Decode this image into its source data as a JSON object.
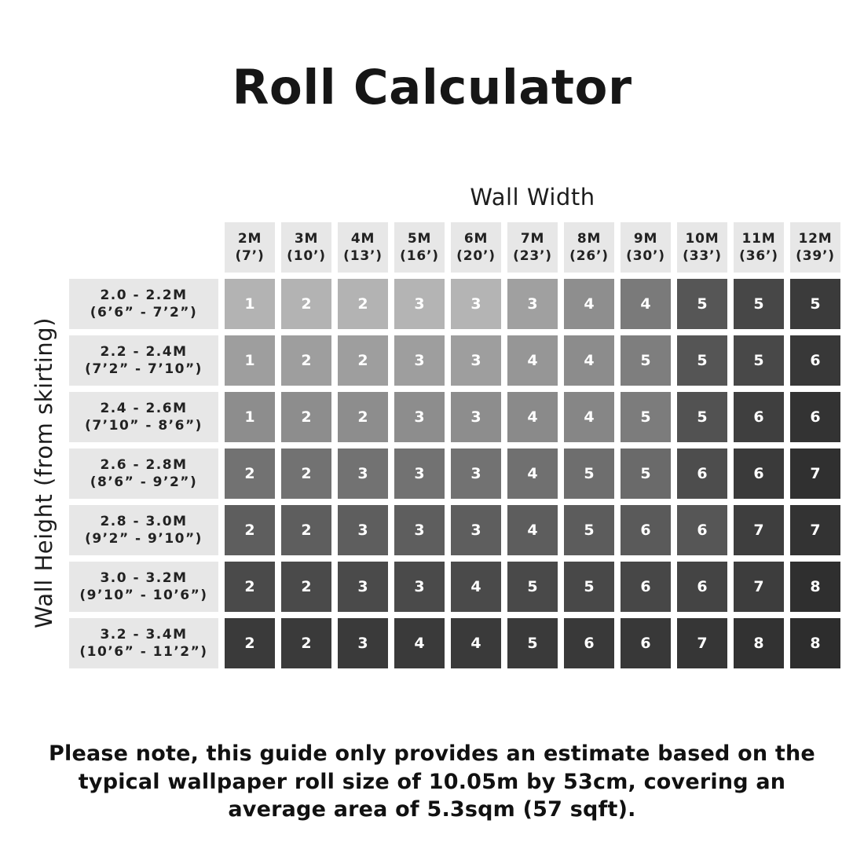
{
  "page": {
    "title": "Roll Calculator",
    "column_axis_label": "Wall Width",
    "row_axis_label": "Wall Height (from skirting)",
    "note": "Please note, this guide only provides an estimate based on the typical wallpaper roll size of 10.05m by 53cm, covering an average area of 5.3sqm (57 sqft)."
  },
  "colors": {
    "background": "#ffffff",
    "header_bg": "#e7e7e7",
    "header_text": "#222222",
    "cell_text": "#ffffff",
    "title_text": "#161616"
  },
  "table": {
    "columns": [
      {
        "meters": "2M",
        "feet": "(7’)"
      },
      {
        "meters": "3M",
        "feet": "(10’)"
      },
      {
        "meters": "4M",
        "feet": "(13’)"
      },
      {
        "meters": "5M",
        "feet": "(16’)"
      },
      {
        "meters": "6M",
        "feet": "(20’)"
      },
      {
        "meters": "7M",
        "feet": "(23’)"
      },
      {
        "meters": "8M",
        "feet": "(26’)"
      },
      {
        "meters": "9M",
        "feet": "(30’)"
      },
      {
        "meters": "10M",
        "feet": "(33’)"
      },
      {
        "meters": "11M",
        "feet": "(36’)"
      },
      {
        "meters": "12M",
        "feet": "(39’)"
      }
    ],
    "rows": [
      {
        "meters": "2.0 - 2.2M",
        "feet": "(6’6” - 7’2”)",
        "cells": [
          {
            "value": "1",
            "color": "#b3b3b3"
          },
          {
            "value": "2",
            "color": "#b3b3b3"
          },
          {
            "value": "2",
            "color": "#b3b3b3"
          },
          {
            "value": "3",
            "color": "#b4b4b4"
          },
          {
            "value": "3",
            "color": "#b4b4b4"
          },
          {
            "value": "3",
            "color": "#a0a0a0"
          },
          {
            "value": "4",
            "color": "#8e8e8e"
          },
          {
            "value": "4",
            "color": "#7a7a7a"
          },
          {
            "value": "5",
            "color": "#565656"
          },
          {
            "value": "5",
            "color": "#474747"
          },
          {
            "value": "5",
            "color": "#3b3b3b"
          }
        ]
      },
      {
        "meters": "2.2 - 2.4M",
        "feet": "(7’2” - 7’10”)",
        "cells": [
          {
            "value": "1",
            "color": "#9e9e9e"
          },
          {
            "value": "2",
            "color": "#9e9e9e"
          },
          {
            "value": "2",
            "color": "#9e9e9e"
          },
          {
            "value": "3",
            "color": "#9e9e9e"
          },
          {
            "value": "3",
            "color": "#9e9e9e"
          },
          {
            "value": "4",
            "color": "#969696"
          },
          {
            "value": "4",
            "color": "#8c8c8c"
          },
          {
            "value": "5",
            "color": "#7e7e7e"
          },
          {
            "value": "5",
            "color": "#555555"
          },
          {
            "value": "5",
            "color": "#484848"
          },
          {
            "value": "6",
            "color": "#383838"
          }
        ]
      },
      {
        "meters": "2.4 - 2.6M",
        "feet": "(7’10” - 8’6”)",
        "cells": [
          {
            "value": "1",
            "color": "#8d8d8d"
          },
          {
            "value": "2",
            "color": "#8d8d8d"
          },
          {
            "value": "2",
            "color": "#8d8d8d"
          },
          {
            "value": "3",
            "color": "#8d8d8d"
          },
          {
            "value": "3",
            "color": "#8d8d8d"
          },
          {
            "value": "4",
            "color": "#8a8a8a"
          },
          {
            "value": "4",
            "color": "#868686"
          },
          {
            "value": "5",
            "color": "#7c7c7c"
          },
          {
            "value": "5",
            "color": "#525252"
          },
          {
            "value": "6",
            "color": "#3f3f3f"
          },
          {
            "value": "6",
            "color": "#333333"
          }
        ]
      },
      {
        "meters": "2.6 - 2.8M",
        "feet": "(8’6” - 9’2”)",
        "cells": [
          {
            "value": "2",
            "color": "#727272"
          },
          {
            "value": "2",
            "color": "#727272"
          },
          {
            "value": "3",
            "color": "#727272"
          },
          {
            "value": "3",
            "color": "#727272"
          },
          {
            "value": "3",
            "color": "#727272"
          },
          {
            "value": "4",
            "color": "#707070"
          },
          {
            "value": "5",
            "color": "#6e6e6e"
          },
          {
            "value": "5",
            "color": "#6a6a6a"
          },
          {
            "value": "6",
            "color": "#4d4d4d"
          },
          {
            "value": "6",
            "color": "#3a3a3a"
          },
          {
            "value": "7",
            "color": "#303030"
          }
        ]
      },
      {
        "meters": "2.8 - 3.0M",
        "feet": "(9’2” - 9’10”)",
        "cells": [
          {
            "value": "2",
            "color": "#5e5e5e"
          },
          {
            "value": "2",
            "color": "#5e5e5e"
          },
          {
            "value": "3",
            "color": "#5e5e5e"
          },
          {
            "value": "3",
            "color": "#5e5e5e"
          },
          {
            "value": "3",
            "color": "#5e5e5e"
          },
          {
            "value": "4",
            "color": "#5d5d5d"
          },
          {
            "value": "5",
            "color": "#5c5c5c"
          },
          {
            "value": "6",
            "color": "#5a5a5a"
          },
          {
            "value": "6",
            "color": "#565656"
          },
          {
            "value": "7",
            "color": "#3e3e3e"
          },
          {
            "value": "7",
            "color": "#333333"
          }
        ]
      },
      {
        "meters": "3.0 - 3.2M",
        "feet": "(9’10” - 10’6”)",
        "cells": [
          {
            "value": "2",
            "color": "#4a4a4a"
          },
          {
            "value": "2",
            "color": "#4a4a4a"
          },
          {
            "value": "3",
            "color": "#4a4a4a"
          },
          {
            "value": "3",
            "color": "#4a4a4a"
          },
          {
            "value": "4",
            "color": "#4a4a4a"
          },
          {
            "value": "5",
            "color": "#494949"
          },
          {
            "value": "5",
            "color": "#484848"
          },
          {
            "value": "6",
            "color": "#474747"
          },
          {
            "value": "6",
            "color": "#444444"
          },
          {
            "value": "7",
            "color": "#3d3d3d"
          },
          {
            "value": "8",
            "color": "#2f2f2f"
          }
        ]
      },
      {
        "meters": "3.2 - 3.4M",
        "feet": "(10’6” - 11’2”)",
        "cells": [
          {
            "value": "2",
            "color": "#3a3a3a"
          },
          {
            "value": "2",
            "color": "#3a3a3a"
          },
          {
            "value": "3",
            "color": "#3a3a3a"
          },
          {
            "value": "4",
            "color": "#3a3a3a"
          },
          {
            "value": "4",
            "color": "#3a3a3a"
          },
          {
            "value": "5",
            "color": "#3a3a3a"
          },
          {
            "value": "6",
            "color": "#393939"
          },
          {
            "value": "6",
            "color": "#383838"
          },
          {
            "value": "7",
            "color": "#363636"
          },
          {
            "value": "8",
            "color": "#323232"
          },
          {
            "value": "8",
            "color": "#2d2d2d"
          }
        ]
      }
    ]
  },
  "chart_data": {
    "type": "heatmap",
    "title": "Roll Calculator",
    "xlabel": "Wall Width",
    "ylabel": "Wall Height (from skirting)",
    "columns": [
      "2M (7’)",
      "3M (10’)",
      "4M (13’)",
      "5M (16’)",
      "6M (20’)",
      "7M (23’)",
      "8M (26’)",
      "9M (30’)",
      "10M (33’)",
      "11M (36’)",
      "12M (39’)"
    ],
    "rows": [
      "2.0 - 2.2M (6’6” - 7’2”)",
      "2.2 - 2.4M (7’2” - 7’10”)",
      "2.4 - 2.6M (7’10” - 8’6”)",
      "2.6 - 2.8M (8’6” - 9’2”)",
      "2.8 - 3.0M (9’2” - 9’10”)",
      "3.0 - 3.2M (9’10” - 10’6”)",
      "3.2 - 3.4M (10’6” - 11’2”)"
    ],
    "values": [
      [
        1,
        2,
        2,
        3,
        3,
        3,
        4,
        4,
        5,
        5,
        5
      ],
      [
        1,
        2,
        2,
        3,
        3,
        4,
        4,
        5,
        5,
        5,
        6
      ],
      [
        1,
        2,
        2,
        3,
        3,
        4,
        4,
        5,
        5,
        6,
        6
      ],
      [
        2,
        2,
        3,
        3,
        3,
        4,
        5,
        5,
        6,
        6,
        7
      ],
      [
        2,
        2,
        3,
        3,
        3,
        4,
        5,
        6,
        6,
        7,
        7
      ],
      [
        2,
        2,
        3,
        3,
        4,
        5,
        5,
        6,
        6,
        7,
        8
      ],
      [
        2,
        2,
        3,
        4,
        4,
        5,
        6,
        6,
        7,
        8,
        8
      ]
    ],
    "value_meaning": "number of wallpaper rolls",
    "shading": "cells darken from light gray at top-left to near-black at bottom-right",
    "note": "Please note, this guide only provides an estimate based on the typical wallpaper roll size of 10.05m by 53cm, covering an average area of 5.3sqm (57 sqft)."
  }
}
